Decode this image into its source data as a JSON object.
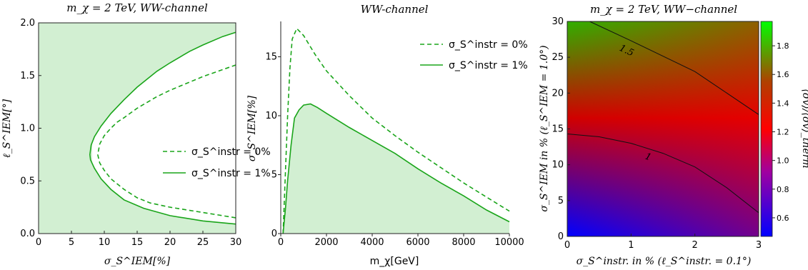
{
  "colors": {
    "green": "#1aa51a",
    "fill": "#d2efd2",
    "bg": "#ffffff"
  },
  "chart_data": [
    {
      "id": "left",
      "type": "line",
      "title": "m_χ = 2 TeV, WW-channel",
      "xlabel": "σ_S^IEM[%]",
      "ylabel": "ℓ_S^IEM[°]",
      "xlim": [
        0,
        30
      ],
      "ylim": [
        0,
        2.0
      ],
      "x_ticks": [
        "0",
        "5",
        "10",
        "15",
        "20",
        "25",
        "30"
      ],
      "y_ticks": [
        "0.0",
        "0.5",
        "1.0",
        "1.5",
        "2.0"
      ],
      "legend": {
        "placement": "right-middle",
        "entries": [
          "σ_S^instr = 0%",
          "σ_S^instr = 1%"
        ]
      },
      "series": [
        {
          "name": "σ_S^instr = 0%",
          "style": "dashed",
          "points": [
            [
              30,
              0.15
            ],
            [
              25,
              0.2
            ],
            [
              20,
              0.25
            ],
            [
              17,
              0.29
            ],
            [
              15,
              0.34
            ],
            [
              13,
              0.42
            ],
            [
              11,
              0.52
            ],
            [
              10,
              0.6
            ],
            [
              9.3,
              0.67
            ],
            [
              9,
              0.75
            ],
            [
              9.3,
              0.85
            ],
            [
              10,
              0.93
            ],
            [
              11,
              1.0
            ],
            [
              12,
              1.06
            ],
            [
              13,
              1.1
            ],
            [
              15,
              1.19
            ],
            [
              18,
              1.3
            ],
            [
              20,
              1.36
            ],
            [
              25,
              1.49
            ],
            [
              30,
              1.6
            ]
          ]
        },
        {
          "name": "σ_S^instr = 1%",
          "style": "solid",
          "points": [
            [
              30,
              0.09
            ],
            [
              25,
              0.12
            ],
            [
              20,
              0.17
            ],
            [
              16,
              0.24
            ],
            [
              13,
              0.32
            ],
            [
              11,
              0.42
            ],
            [
              9.5,
              0.52
            ],
            [
              8.5,
              0.62
            ],
            [
              7.9,
              0.7
            ],
            [
              7.8,
              0.75
            ],
            [
              8,
              0.84
            ],
            [
              8.5,
              0.92
            ],
            [
              9.5,
              1.02
            ],
            [
              11,
              1.14
            ],
            [
              13,
              1.27
            ],
            [
              15,
              1.39
            ],
            [
              18,
              1.54
            ],
            [
              20,
              1.62
            ],
            [
              23,
              1.73
            ],
            [
              25,
              1.79
            ],
            [
              28,
              1.87
            ],
            [
              30,
              1.91
            ]
          ]
        }
      ]
    },
    {
      "id": "middle",
      "type": "line",
      "title": "WW-channel",
      "xlabel": "m_χ[GeV]",
      "ylabel": "σ_S^IEM[%]",
      "xlim": [
        0,
        10000
      ],
      "ylim": [
        0,
        18
      ],
      "x_ticks": [
        "0",
        "2000",
        "4000",
        "6000",
        "8000",
        "10000"
      ],
      "y_ticks": [
        "0",
        "5",
        "10",
        "15"
      ],
      "legend": {
        "placement": "top-right",
        "entries": [
          "σ_S^instr = 0%",
          "σ_S^instr = 1%"
        ]
      },
      "series": [
        {
          "name": "σ_S^instr = 0%",
          "style": "dashed",
          "points": [
            [
              100,
              0
            ],
            [
              200,
              5
            ],
            [
              300,
              10
            ],
            [
              400,
              14
            ],
            [
              500,
              16.5
            ],
            [
              700,
              17.4
            ],
            [
              1000,
              16.8
            ],
            [
              1500,
              15.2
            ],
            [
              2000,
              13.8
            ],
            [
              3000,
              11.7
            ],
            [
              4000,
              9.8
            ],
            [
              5000,
              8.3
            ],
            [
              6000,
              6.9
            ],
            [
              7000,
              5.6
            ],
            [
              8000,
              4.3
            ],
            [
              9000,
              3.1
            ],
            [
              10000,
              1.9
            ]
          ]
        },
        {
          "name": "σ_S^instr = 1%",
          "style": "solid",
          "points": [
            [
              100,
              0
            ],
            [
              200,
              2
            ],
            [
              300,
              4.5
            ],
            [
              450,
              7.5
            ],
            [
              600,
              9.8
            ],
            [
              800,
              10.5
            ],
            [
              1000,
              10.9
            ],
            [
              1300,
              11.0
            ],
            [
              1600,
              10.7
            ],
            [
              2000,
              10.2
            ],
            [
              3000,
              9.0
            ],
            [
              4000,
              7.9
            ],
            [
              5000,
              6.8
            ],
            [
              6000,
              5.5
            ],
            [
              7000,
              4.3
            ],
            [
              8000,
              3.2
            ],
            [
              9000,
              2.0
            ],
            [
              10000,
              1.0
            ]
          ]
        }
      ]
    },
    {
      "id": "right",
      "type": "heatmap",
      "title": "m_χ = 2 TeV, WW−channel",
      "xlabel": "σ_S^instr. in % (ℓ_S^instr. = 0.1°)",
      "ylabel": "σ_S^IEM in % (ℓ_S^IEM = 1.0°)",
      "xlim": [
        0,
        3
      ],
      "ylim": [
        0,
        30
      ],
      "x_ticks": [
        "0",
        "1",
        "2",
        "3"
      ],
      "y_ticks": [
        "0",
        "5",
        "10",
        "15",
        "20",
        "25",
        "30"
      ],
      "colorbar": {
        "label": "⟨σv⟩/⟨σv⟩_therm",
        "ticks": [
          "0.6",
          "0.8",
          "1.0",
          "1.2",
          "1.4",
          "1.6",
          "1.8"
        ],
        "range": [
          0.47,
          1.97
        ]
      },
      "contours": [
        {
          "label": "1.5",
          "points": [
            [
              0.35,
              30
            ],
            [
              1,
              27.3
            ],
            [
              2,
              23
            ],
            [
              3,
              17
            ]
          ]
        },
        {
          "label": "1",
          "points": [
            [
              0,
              14.3
            ],
            [
              0.5,
              13.9
            ],
            [
              1,
              13
            ],
            [
              1.5,
              11.6
            ],
            [
              2,
              9.7
            ],
            [
              2.5,
              6.8
            ],
            [
              3,
              3.3
            ]
          ]
        }
      ]
    }
  ]
}
